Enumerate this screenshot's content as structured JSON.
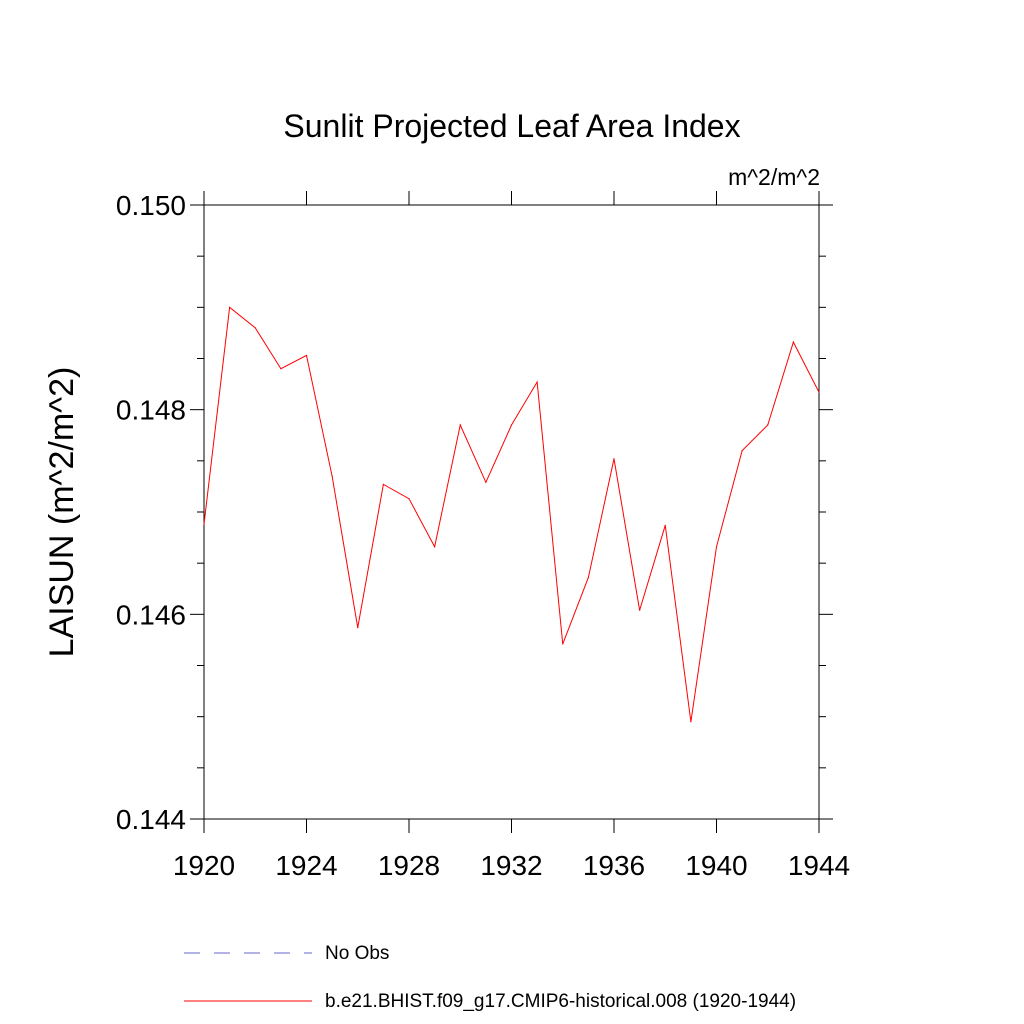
{
  "chart_data": {
    "type": "line",
    "title": "Sunlit Projected Leaf Area Index",
    "units_label": "m^2/m^2",
    "ylabel": "LAISUN  (m^2/m^2)",
    "xlabel": "",
    "xlim": [
      1920,
      1944
    ],
    "ylim": [
      0.144,
      0.15
    ],
    "x_ticks": [
      1920,
      1924,
      1928,
      1932,
      1936,
      1940,
      1944
    ],
    "x_tick_labels": [
      "1920",
      "1924",
      "1928",
      "1932",
      "1936",
      "1940",
      "1944"
    ],
    "y_ticks": [
      0.144,
      0.146,
      0.148,
      0.15
    ],
    "y_tick_labels": [
      "0.144",
      "0.146",
      "0.148",
      "0.150"
    ],
    "grid": false,
    "legend_position": "bottom",
    "x": [
      1920,
      1921,
      1922,
      1923,
      1924,
      1925,
      1926,
      1927,
      1928,
      1929,
      1930,
      1931,
      1932,
      1933,
      1934,
      1935,
      1936,
      1937,
      1938,
      1939,
      1940,
      1941,
      1942,
      1943,
      1944
    ],
    "series": [
      {
        "name": "b.e21.BHIST.f09_g17.CMIP6-historical.008 (1920-1944)",
        "color": "#ff0000",
        "style": "solid",
        "values": [
          0.14688,
          0.149,
          0.1488,
          0.1484,
          0.14853,
          0.14735,
          0.14587,
          0.14727,
          0.14713,
          0.14666,
          0.14785,
          0.14729,
          0.14785,
          0.14827,
          0.14571,
          0.14636,
          0.14752,
          0.14604,
          0.14687,
          0.14495,
          0.14666,
          0.1476,
          0.14785,
          0.14866,
          0.14817
        ]
      }
    ],
    "legend": [
      {
        "label": "No Obs",
        "color": "#6666cc",
        "style": "dashed"
      },
      {
        "label": "b.e21.BHIST.f09_g17.CMIP6-historical.008 (1920-1944)",
        "color": "#ff0000",
        "style": "solid"
      }
    ]
  }
}
